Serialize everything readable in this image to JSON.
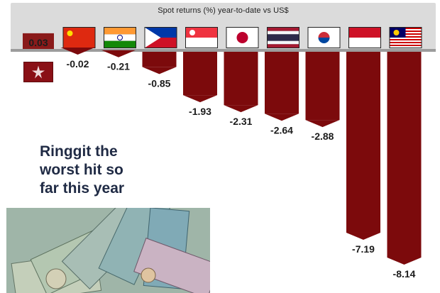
{
  "chart_data": {
    "type": "bar",
    "title": "Spot returns (%) year-to-date vs US$",
    "categories": [
      "Hong Kong",
      "China",
      "India",
      "Philippines",
      "Singapore",
      "Japan",
      "Thailand",
      "South Korea",
      "Indonesia",
      "Malaysia"
    ],
    "values": [
      0.03,
      -0.02,
      -0.21,
      -0.85,
      -1.93,
      -2.31,
      -2.64,
      -2.88,
      -7.19,
      -8.14
    ],
    "value_labels": [
      "0.03",
      "-0.02",
      "-0.21",
      "-0.85",
      "-1.93",
      "-2.31",
      "-2.64",
      "-2.88",
      "-7.19",
      "-8.14"
    ],
    "bar_color": "#7c0a0c",
    "positive_bar_color": "#8a1a1a"
  },
  "headline": {
    "line1": "Ringgit the",
    "line2": "worst hit so",
    "line3": "far this year"
  },
  "flag_icons": [
    "china-flag-icon",
    "india-flag-icon",
    "philippines-flag-icon",
    "singapore-flag-icon",
    "japan-flag-icon",
    "thailand-flag-icon",
    "south-korea-flag-icon",
    "indonesia-flag-icon",
    "malaysia-flag-icon",
    "hong-kong-flag-icon"
  ],
  "photo": {
    "subject": "fanned US dollar and Malaysian ringgit banknotes"
  }
}
